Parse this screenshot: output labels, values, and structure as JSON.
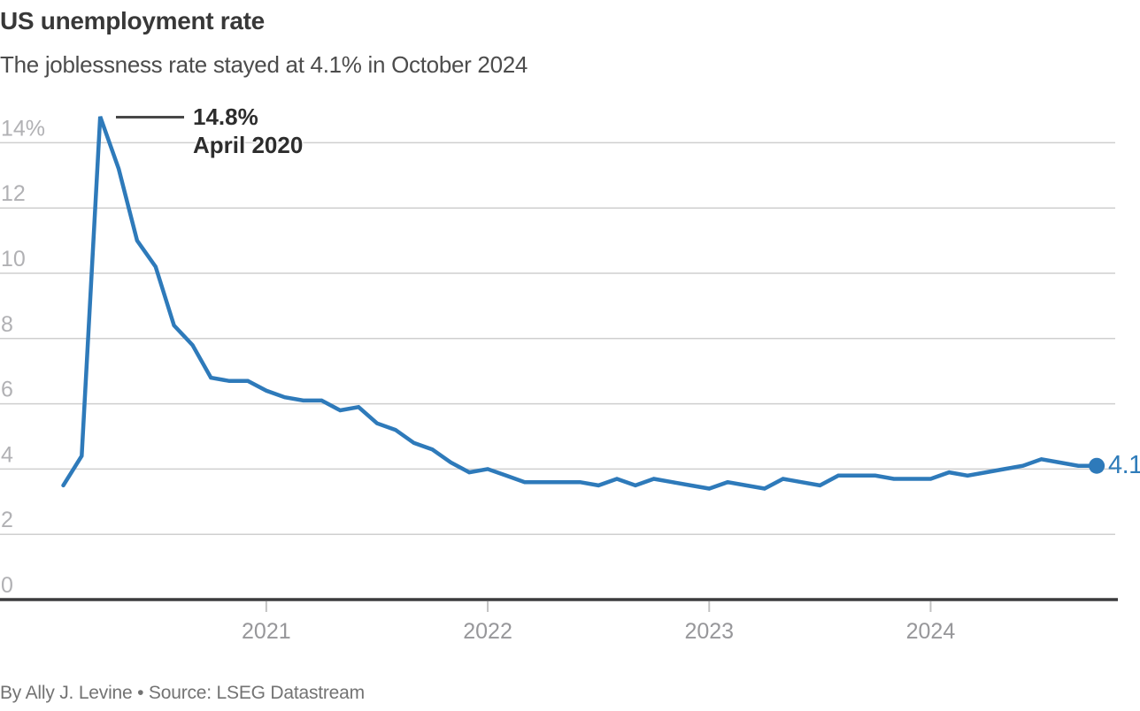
{
  "header": {
    "title": "US unemployment rate",
    "subtitle": "The joblessness rate stayed at 4.1% in October 2024"
  },
  "annotation": {
    "value_label": "14.8%",
    "date_label": "April 2020",
    "points_to": {
      "month": "April 2020",
      "value": 14.8
    }
  },
  "footer": {
    "credit": "By Ally J. Levine • Source: LSEG Datastream"
  },
  "colors": {
    "line": "#2e7aba",
    "end_dot": "#2e7aba",
    "end_label": "#2f7cba",
    "gridline": "#cfcfcf",
    "baseline": "#3b3b3d",
    "y_tick_label": "#b1b1b4",
    "x_tick_label": "#97979a",
    "x_tick_mark": "#c2c2c2"
  },
  "chart_data": {
    "type": "line",
    "title": "US unemployment rate",
    "subtitle": "The joblessness rate stayed at 4.1% in October 2024",
    "unit": "%",
    "x_start": "Feb 2020",
    "x_end": "Oct 2024",
    "ylim": [
      0,
      15.5
    ],
    "grid": true,
    "y_tick_values": [
      14,
      12,
      10,
      8,
      6,
      4,
      2,
      0
    ],
    "y_tick_labels": [
      "14%",
      "12",
      "10",
      "8",
      "6",
      "4",
      "2",
      "0"
    ],
    "x_tick_labels": [
      "2021",
      "2022",
      "2023",
      "2024"
    ],
    "x_tick_month_offsets": [
      11,
      23,
      35,
      47
    ],
    "end_label": "4.1",
    "series": [
      {
        "name": "US unemployment rate (%, monthly, Feb 2020 - Oct 2024)",
        "values": [
          3.5,
          4.4,
          14.8,
          13.2,
          11.0,
          10.2,
          8.4,
          7.8,
          6.8,
          6.7,
          6.7,
          6.4,
          6.2,
          6.1,
          6.1,
          5.8,
          5.9,
          5.4,
          5.2,
          4.8,
          4.6,
          4.2,
          3.9,
          4.0,
          3.8,
          3.6,
          3.6,
          3.6,
          3.6,
          3.5,
          3.7,
          3.5,
          3.7,
          3.6,
          3.5,
          3.4,
          3.6,
          3.5,
          3.4,
          3.7,
          3.6,
          3.5,
          3.8,
          3.8,
          3.8,
          3.7,
          3.7,
          3.7,
          3.9,
          3.8,
          3.9,
          4.0,
          4.1,
          4.3,
          4.2,
          4.1,
          4.1
        ]
      }
    ]
  }
}
